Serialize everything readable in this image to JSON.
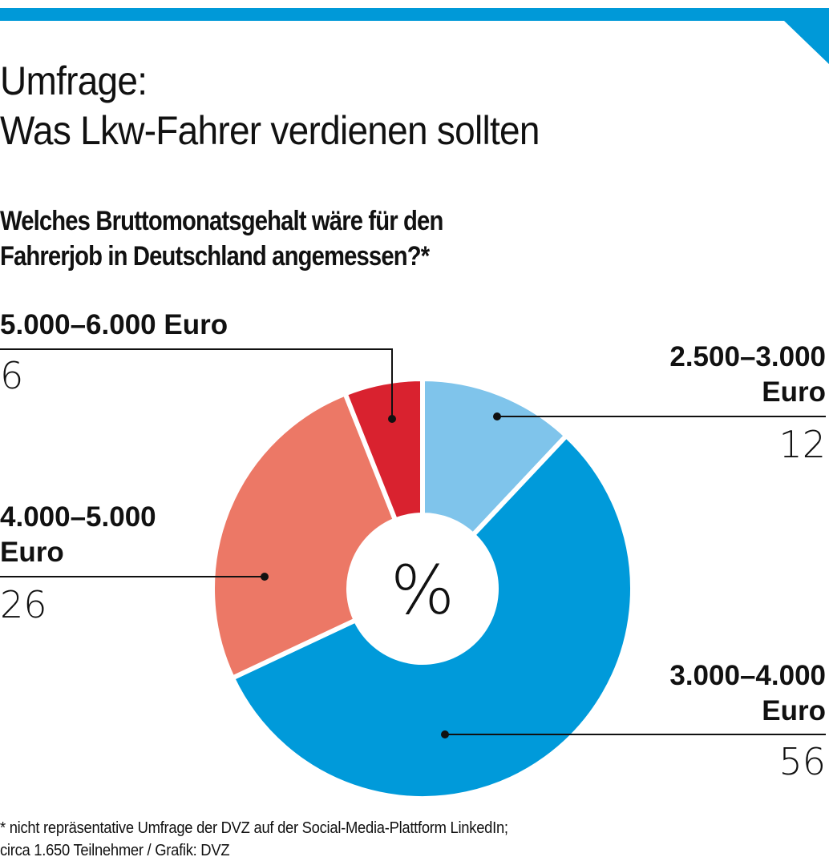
{
  "header": {
    "title_line1": "Umfrage:",
    "title_line2": "Was Lkw-Fahrer verdienen sollten",
    "subtitle_line1": "Welches Bruttomonatsgehalt wäre für den",
    "subtitle_line2": "Fahrerjob in Deutschland angemessen?*",
    "accent_color": "#0099d8"
  },
  "chart_data": {
    "type": "pie",
    "variant": "donut",
    "title": "Welches Bruttomonatsgehalt wäre für den Fahrerjob in Deutschland angemessen?*",
    "center_label": "%",
    "unit": "%",
    "categories": [
      "2.500–3.000 Euro",
      "3.000–4.000 Euro",
      "4.000–5.000 Euro",
      "5.000–6.000 Euro"
    ],
    "values": [
      12,
      56,
      26,
      6
    ],
    "colors": [
      "#7fc4eb",
      "#009ada",
      "#ec7866",
      "#d9222f"
    ],
    "start_angle": "top (12 o'clock)",
    "direction": "clockwise",
    "labels": [
      {
        "line1": "2.500–3.000",
        "line2": "Euro",
        "value": "12"
      },
      {
        "line1": "3.000–4.000",
        "line2": "Euro",
        "value": "56"
      },
      {
        "line1": "4.000–5.000",
        "line2": "Euro",
        "value": "26"
      },
      {
        "line1": "5.000–6.000 Euro",
        "line2": "",
        "value": "6"
      }
    ]
  },
  "footnote": {
    "line1": "* nicht repräsentative Umfrage der DVZ auf der Social-Media-Plattform LinkedIn;",
    "line2": "circa 1.650 Teilnehmer / Grafik: DVZ"
  }
}
